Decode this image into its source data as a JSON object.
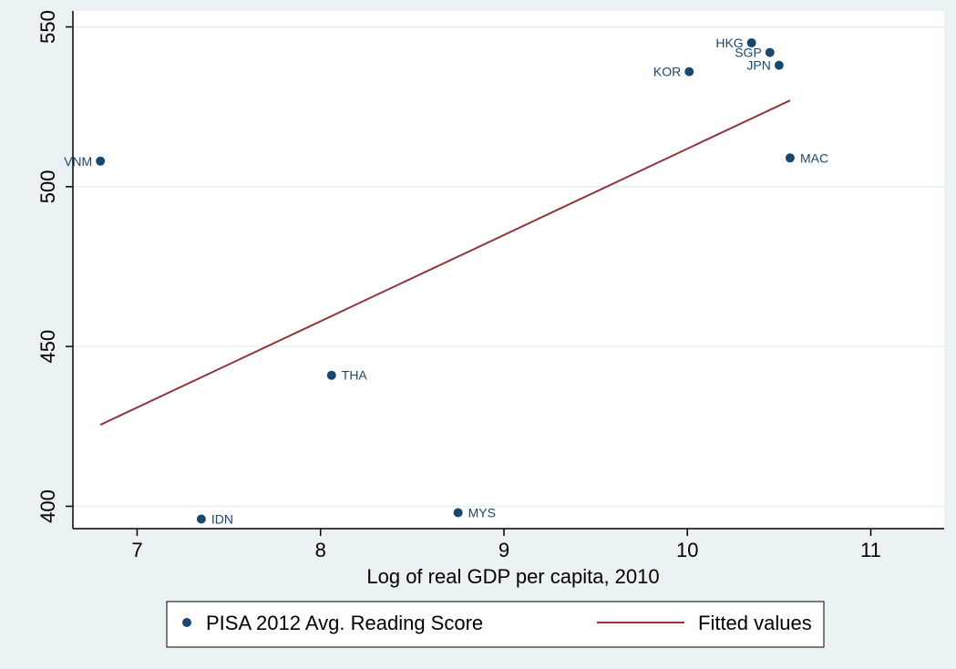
{
  "chart_data": {
    "type": "scatter",
    "xlabel": "Log of real GDP per capita, 2010",
    "ylabel": "",
    "xlim": [
      6.65,
      11.4
    ],
    "ylim": [
      393,
      555
    ],
    "x_ticks": [
      7,
      8,
      9,
      10,
      11
    ],
    "y_ticks": [
      400,
      450,
      500,
      550
    ],
    "grid": "horizontal",
    "legend_position": "bottom",
    "series": [
      {
        "name": "PISA 2012 Avg. Reading Score",
        "kind": "scatter",
        "color": "#1a476f",
        "points": [
          {
            "label": "VNM",
            "x": 6.8,
            "y": 508,
            "label_side": "left"
          },
          {
            "label": "IDN",
            "x": 7.35,
            "y": 396,
            "label_side": "right"
          },
          {
            "label": "THA",
            "x": 8.06,
            "y": 441,
            "label_side": "right"
          },
          {
            "label": "MYS",
            "x": 8.75,
            "y": 398,
            "label_side": "right"
          },
          {
            "label": "KOR",
            "x": 10.01,
            "y": 536,
            "label_side": "left"
          },
          {
            "label": "HKG",
            "x": 10.35,
            "y": 545,
            "label_side": "left"
          },
          {
            "label": "SGP",
            "x": 10.45,
            "y": 542,
            "label_side": "left"
          },
          {
            "label": "JPN",
            "x": 10.5,
            "y": 538,
            "label_side": "left"
          },
          {
            "label": "MAC",
            "x": 10.56,
            "y": 509,
            "label_side": "right"
          }
        ]
      },
      {
        "name": "Fitted values",
        "kind": "line",
        "color": "#90353b",
        "x": [
          6.8,
          10.56
        ],
        "y": [
          425.5,
          527
        ]
      }
    ]
  }
}
